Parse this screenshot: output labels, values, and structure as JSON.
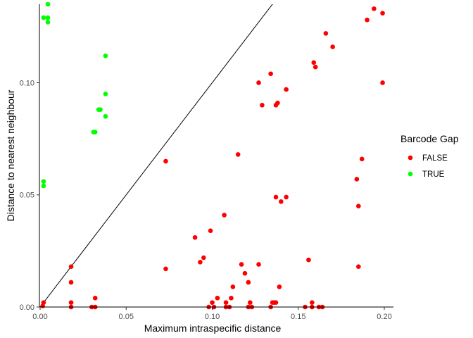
{
  "chart_data": {
    "type": "scatter",
    "xlabel": "Maximum intraspecific distance",
    "ylabel": "Distance to nearest neighbour",
    "xlim": [
      0,
      0.2
    ],
    "ylim": [
      0,
      0.135
    ],
    "x_ticks": [
      0.0,
      0.05,
      0.1,
      0.15,
      0.2
    ],
    "x_tick_labels": [
      "0.00",
      "0.05",
      "0.10",
      "0.15",
      "0.20"
    ],
    "y_ticks": [
      0.0,
      0.05,
      0.1
    ],
    "y_tick_labels": [
      "0.00",
      "0.05",
      "0.10"
    ],
    "grid": false,
    "reference_line": {
      "type": "identity",
      "slope": 1,
      "intercept": 0,
      "color": "#000000"
    },
    "legend": {
      "title": "Barcode Gap",
      "position": "right",
      "entries": [
        {
          "label": "FALSE",
          "color": "#ff0000"
        },
        {
          "label": "TRUE",
          "color": "#00ff00"
        }
      ]
    },
    "series": [
      {
        "name": "FALSE",
        "color": "#ff0000",
        "points": [
          [
            0.002,
            0.002
          ],
          [
            0.0015,
            0.0005
          ],
          [
            0.018,
            0.018
          ],
          [
            0.018,
            0.011
          ],
          [
            0.018,
            0.002
          ],
          [
            0.018,
            0.0
          ],
          [
            0.032,
            0.004
          ],
          [
            0.03,
            0.0
          ],
          [
            0.032,
            0.0
          ],
          [
            0.073,
            0.065
          ],
          [
            0.073,
            0.017
          ],
          [
            0.09,
            0.031
          ],
          [
            0.093,
            0.02
          ],
          [
            0.095,
            0.022
          ],
          [
            0.099,
            0.034
          ],
          [
            0.1,
            0.002
          ],
          [
            0.098,
            0.0
          ],
          [
            0.101,
            0.0
          ],
          [
            0.103,
            0.004
          ],
          [
            0.107,
            0.041
          ],
          [
            0.108,
            0.002
          ],
          [
            0.108,
            0.0
          ],
          [
            0.11,
            0.0
          ],
          [
            0.111,
            0.004
          ],
          [
            0.112,
            0.009
          ],
          [
            0.115,
            0.068
          ],
          [
            0.117,
            0.019
          ],
          [
            0.119,
            0.015
          ],
          [
            0.121,
            0.011
          ],
          [
            0.121,
            0.0
          ],
          [
            0.122,
            0.002
          ],
          [
            0.123,
            0.0
          ],
          [
            0.127,
            0.1
          ],
          [
            0.127,
            0.019
          ],
          [
            0.129,
            0.09
          ],
          [
            0.134,
            0.104
          ],
          [
            0.135,
            0.002
          ],
          [
            0.134,
            0.0
          ],
          [
            0.136,
            0.002
          ],
          [
            0.137,
            0.09
          ],
          [
            0.138,
            0.091
          ],
          [
            0.137,
            0.049
          ],
          [
            0.137,
            0.002
          ],
          [
            0.139,
            0.009
          ],
          [
            0.14,
            0.047
          ],
          [
            0.143,
            0.049
          ],
          [
            0.143,
            0.097
          ],
          [
            0.154,
            0.0
          ],
          [
            0.156,
            0.021
          ],
          [
            0.158,
            0.002
          ],
          [
            0.159,
            0.109
          ],
          [
            0.16,
            0.107
          ],
          [
            0.158,
            0.0
          ],
          [
            0.162,
            0.0
          ],
          [
            0.164,
            0.0
          ],
          [
            0.166,
            0.122
          ],
          [
            0.17,
            0.116
          ],
          [
            0.184,
            0.057
          ],
          [
            0.185,
            0.045
          ],
          [
            0.185,
            0.018
          ],
          [
            0.187,
            0.066
          ],
          [
            0.19,
            0.128
          ],
          [
            0.194,
            0.133
          ],
          [
            0.199,
            0.131
          ],
          [
            0.199,
            0.1
          ]
        ]
      },
      {
        "name": "TRUE",
        "color": "#00ff00",
        "points": [
          [
            0.002,
            0.129
          ],
          [
            0.0045,
            0.129
          ],
          [
            0.0045,
            0.127
          ],
          [
            0.0045,
            0.135
          ],
          [
            0.002,
            0.056
          ],
          [
            0.002,
            0.054
          ],
          [
            0.031,
            0.078
          ],
          [
            0.032,
            0.078
          ],
          [
            0.034,
            0.088
          ],
          [
            0.035,
            0.088
          ],
          [
            0.038,
            0.112
          ],
          [
            0.038,
            0.095
          ],
          [
            0.038,
            0.085
          ]
        ]
      }
    ]
  }
}
